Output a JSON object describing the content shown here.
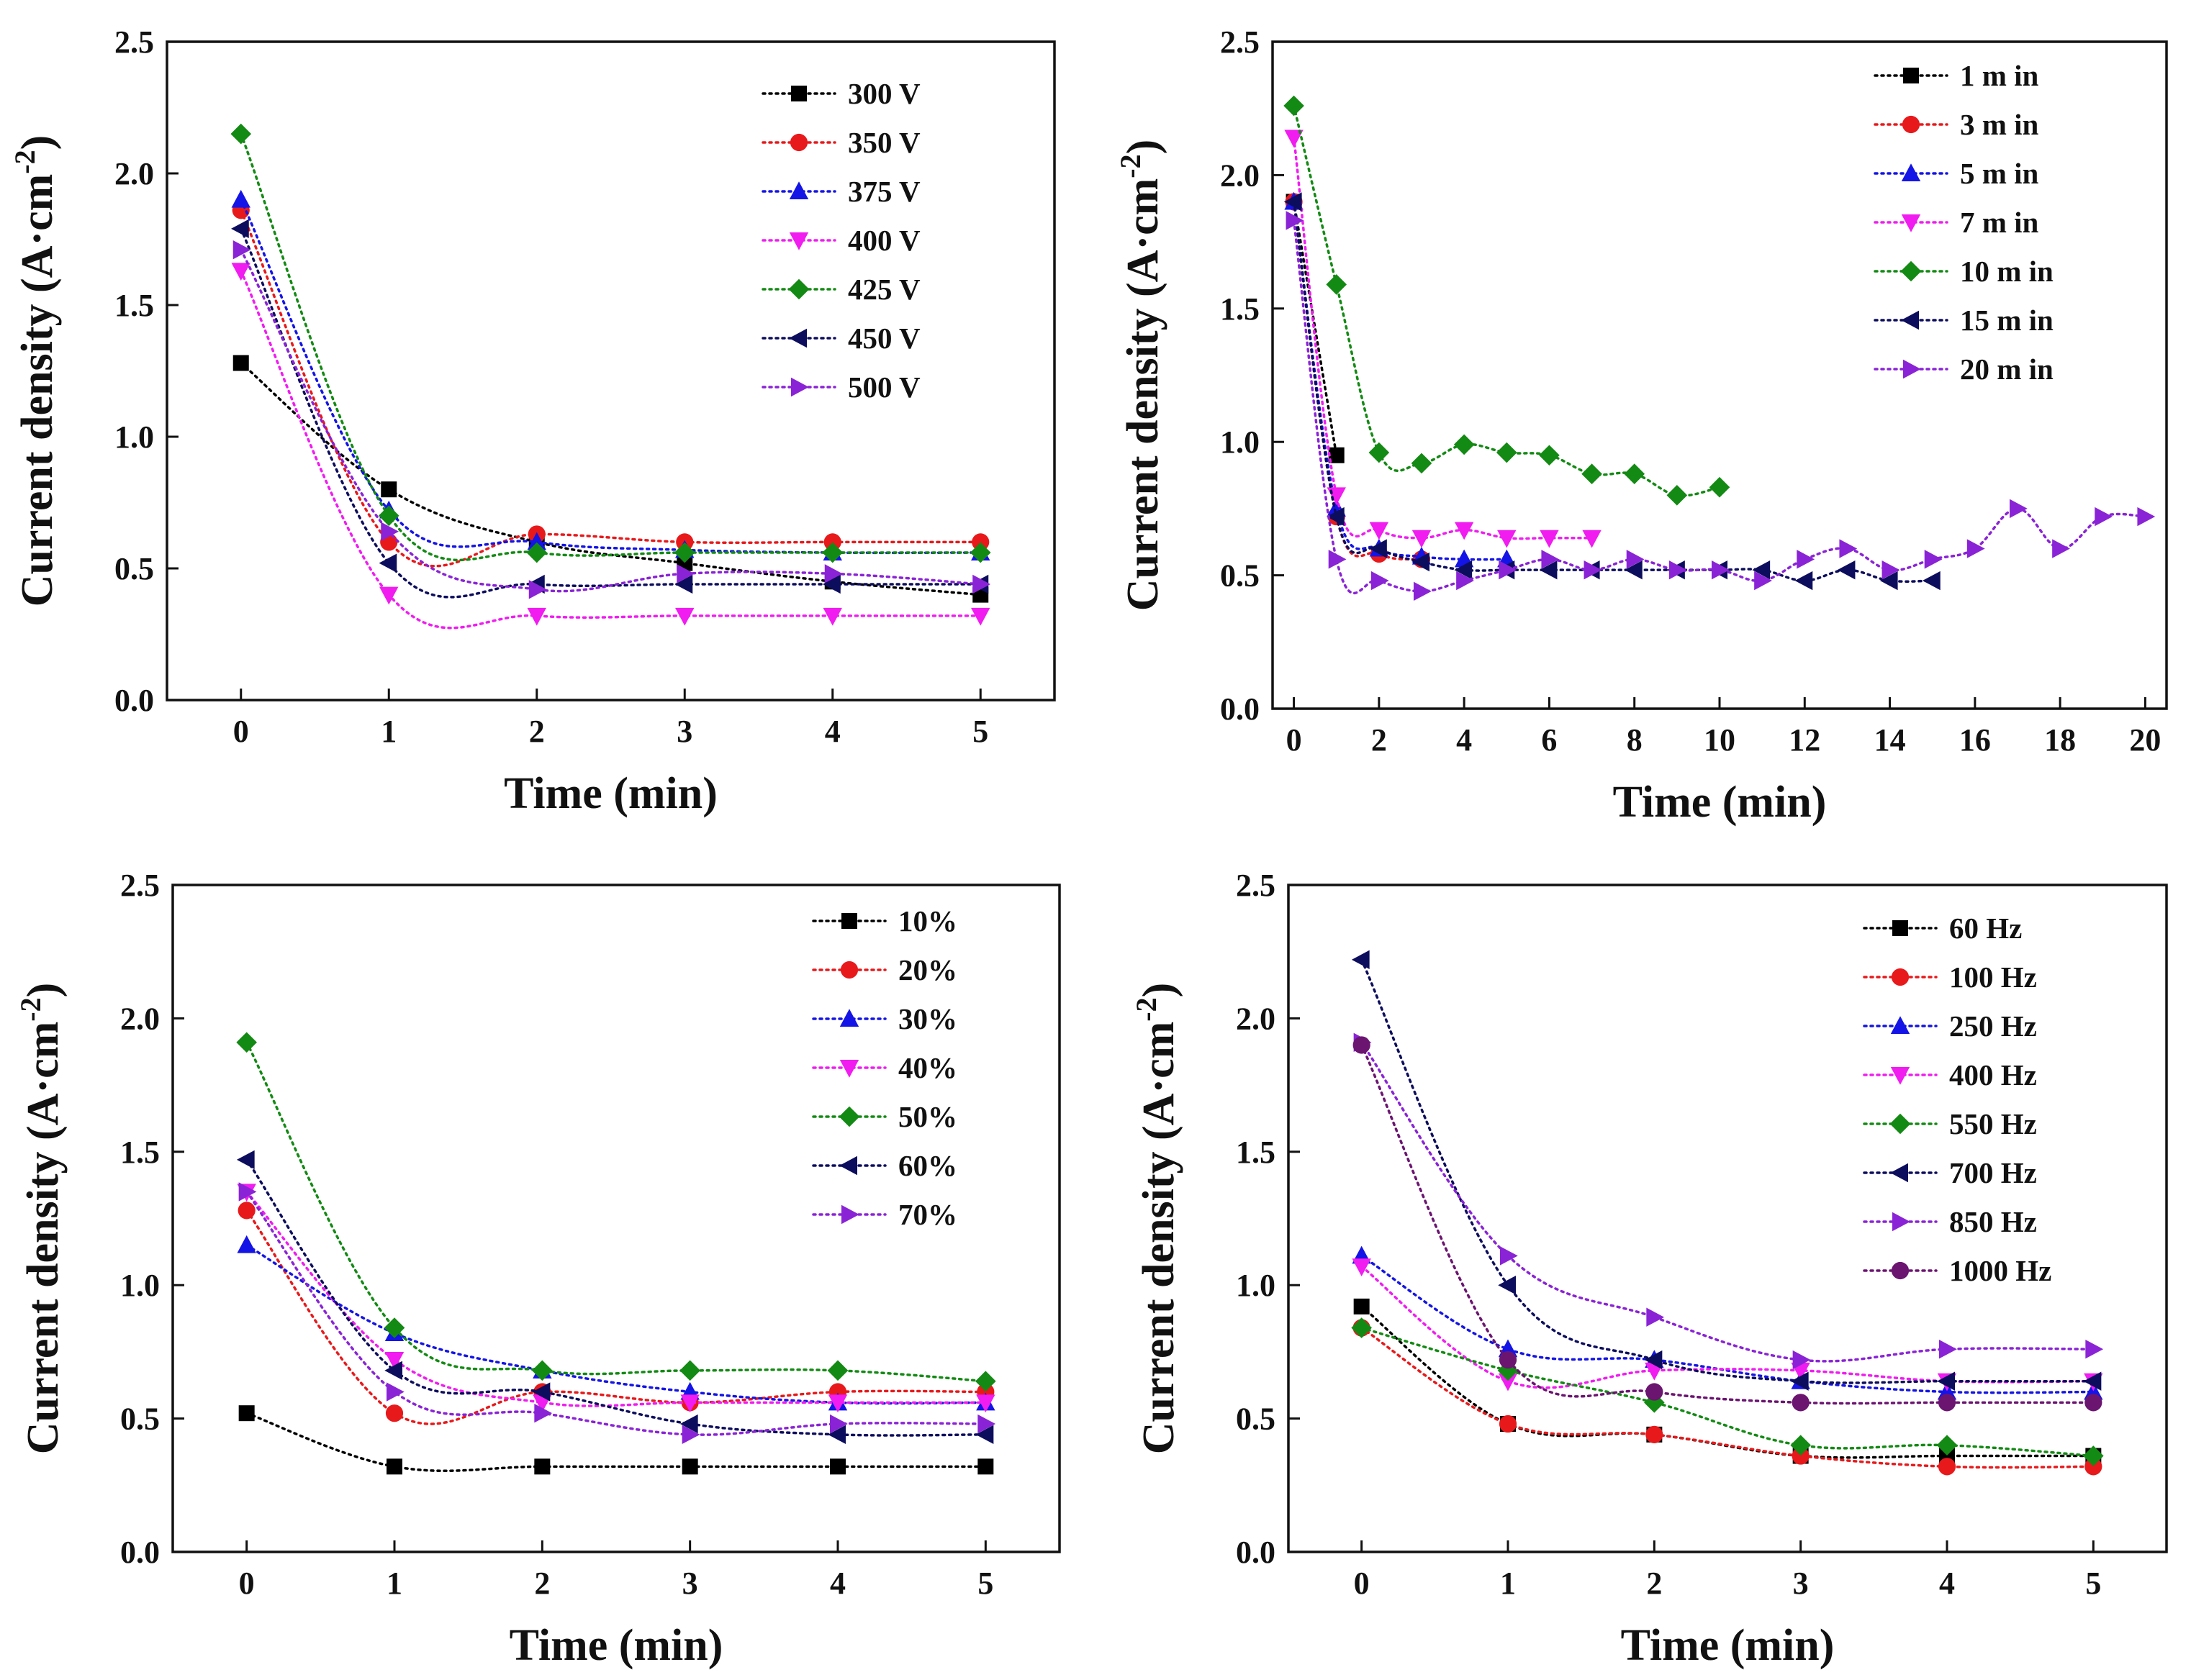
{
  "chart_data": [
    {
      "type": "line",
      "title": "",
      "xlabel": "Time (min)",
      "ylabel_main": "Current density (A·cm",
      "ylabel_sup": "-2",
      "ylabel_close": ")",
      "xlim": [
        -0.5,
        5.5
      ],
      "ylim": [
        0,
        2.5
      ],
      "xticks": [
        0,
        1,
        2,
        3,
        4,
        5
      ],
      "yticks": [
        0.0,
        0.5,
        1.0,
        1.5,
        2.0,
        2.5
      ],
      "ytick_labels": [
        "0.0",
        "0.5",
        "1.0",
        "1.5",
        "2.0",
        "2.5"
      ],
      "legend_position": "top-right",
      "series": [
        {
          "name": "300 V",
          "color": "#000000",
          "marker": "square",
          "x": [
            0,
            1,
            2,
            3,
            4,
            5
          ],
          "y": [
            1.28,
            0.8,
            0.6,
            0.52,
            0.45,
            0.4
          ]
        },
        {
          "name": "350 V",
          "color": "#e8191b",
          "marker": "circle",
          "x": [
            0,
            1,
            2,
            3,
            4,
            5
          ],
          "y": [
            1.86,
            0.6,
            0.63,
            0.6,
            0.6,
            0.6
          ]
        },
        {
          "name": "375 V",
          "color": "#1414e6",
          "marker": "triangle-up",
          "x": [
            0,
            1,
            2,
            3,
            4,
            5
          ],
          "y": [
            1.9,
            0.72,
            0.6,
            0.57,
            0.56,
            0.56
          ]
        },
        {
          "name": "400 V",
          "color": "#f01cf0",
          "marker": "triangle-down",
          "x": [
            0,
            1,
            2,
            3,
            4,
            5
          ],
          "y": [
            1.63,
            0.4,
            0.32,
            0.32,
            0.32,
            0.32
          ]
        },
        {
          "name": "425 V",
          "color": "#138a13",
          "marker": "diamond",
          "x": [
            0,
            1,
            2,
            3,
            4,
            5
          ],
          "y": [
            2.15,
            0.7,
            0.56,
            0.56,
            0.56,
            0.56
          ]
        },
        {
          "name": "450 V",
          "color": "#0d0d5e",
          "marker": "triangle-left",
          "x": [
            0,
            1,
            2,
            3,
            4,
            5
          ],
          "y": [
            1.79,
            0.52,
            0.44,
            0.44,
            0.44,
            0.44
          ]
        },
        {
          "name": "500 V",
          "color": "#8a23d6",
          "marker": "triangle-right",
          "x": [
            0,
            1,
            2,
            3,
            4,
            5
          ],
          "y": [
            1.71,
            0.64,
            0.42,
            0.48,
            0.48,
            0.44
          ]
        }
      ]
    },
    {
      "type": "line",
      "title": "",
      "xlabel": "Time (min)",
      "ylabel_main": "Current density (A·cm",
      "ylabel_sup": "-2",
      "ylabel_close": ")",
      "xlim": [
        -0.5,
        20.5
      ],
      "ylim": [
        0,
        2.5
      ],
      "xticks": [
        0,
        2,
        4,
        6,
        8,
        10,
        12,
        14,
        16,
        18,
        20
      ],
      "yticks": [
        0.0,
        0.5,
        1.0,
        1.5,
        2.0,
        2.5
      ],
      "ytick_labels": [
        "0.0",
        "0.5",
        "1.0",
        "1.5",
        "2.0",
        "2.5"
      ],
      "legend_position": "top-right",
      "series": [
        {
          "name": "1 m in",
          "color": "#000000",
          "marker": "square",
          "x": [
            0,
            1
          ],
          "y": [
            1.9,
            0.95
          ]
        },
        {
          "name": "3 m in",
          "color": "#e8191b",
          "marker": "circle",
          "x": [
            0,
            1,
            2,
            3
          ],
          "y": [
            1.9,
            0.72,
            0.58,
            0.56
          ]
        },
        {
          "name": "5 m in",
          "color": "#1414e6",
          "marker": "triangle-up",
          "x": [
            0,
            1,
            2,
            3,
            4,
            5
          ],
          "y": [
            1.9,
            0.75,
            0.6,
            0.57,
            0.56,
            0.56
          ]
        },
        {
          "name": "7 m in",
          "color": "#f01cf0",
          "marker": "triangle-down",
          "x": [
            0,
            1,
            2,
            3,
            4,
            5,
            6,
            7
          ],
          "y": [
            2.14,
            0.8,
            0.67,
            0.64,
            0.67,
            0.64,
            0.64,
            0.64
          ]
        },
        {
          "name": "10 m in",
          "color": "#138a13",
          "marker": "diamond",
          "x": [
            0,
            1,
            2,
            3,
            4,
            5,
            6,
            7,
            8,
            9,
            10
          ],
          "y": [
            2.26,
            1.59,
            0.96,
            0.92,
            0.99,
            0.96,
            0.95,
            0.88,
            0.88,
            0.8,
            0.83
          ]
        },
        {
          "name": "15 m in",
          "color": "#0d0d5e",
          "marker": "triangle-left",
          "x": [
            0,
            1,
            2,
            3,
            4,
            5,
            6,
            7,
            8,
            9,
            10,
            11,
            12,
            13,
            14,
            15
          ],
          "y": [
            1.9,
            0.72,
            0.6,
            0.55,
            0.52,
            0.52,
            0.52,
            0.52,
            0.52,
            0.52,
            0.52,
            0.52,
            0.48,
            0.52,
            0.48,
            0.48
          ]
        },
        {
          "name": "20 m in",
          "color": "#8a23d6",
          "marker": "triangle-right",
          "x": [
            0,
            1,
            2,
            3,
            4,
            5,
            6,
            7,
            8,
            9,
            10,
            11,
            12,
            13,
            14,
            15,
            16,
            17,
            18,
            19,
            20
          ],
          "y": [
            1.83,
            0.56,
            0.48,
            0.44,
            0.48,
            0.52,
            0.56,
            0.52,
            0.56,
            0.52,
            0.52,
            0.48,
            0.56,
            0.6,
            0.52,
            0.56,
            0.6,
            0.75,
            0.6,
            0.72,
            0.72
          ]
        }
      ]
    },
    {
      "type": "line",
      "title": "",
      "xlabel": "Time (min)",
      "ylabel_main": "Current density (A·cm",
      "ylabel_sup": "-2",
      "ylabel_close": ")",
      "xlim": [
        -0.5,
        5.5
      ],
      "ylim": [
        0,
        2.5
      ],
      "xticks": [
        0,
        1,
        2,
        3,
        4,
        5
      ],
      "yticks": [
        0.0,
        0.5,
        1.0,
        1.5,
        2.0,
        2.5
      ],
      "ytick_labels": [
        "0.0",
        "0.5",
        "1.0",
        "1.5",
        "2.0",
        "2.5"
      ],
      "legend_position": "top-right",
      "series": [
        {
          "name": "10%",
          "color": "#000000",
          "marker": "square",
          "x": [
            0,
            1,
            2,
            3,
            4,
            5
          ],
          "y": [
            0.52,
            0.32,
            0.32,
            0.32,
            0.32,
            0.32
          ]
        },
        {
          "name": "20%",
          "color": "#e8191b",
          "marker": "circle",
          "x": [
            0,
            1,
            2,
            3,
            4,
            5
          ],
          "y": [
            1.28,
            0.52,
            0.6,
            0.56,
            0.6,
            0.6
          ]
        },
        {
          "name": "30%",
          "color": "#1414e6",
          "marker": "triangle-up",
          "x": [
            0,
            1,
            2,
            3,
            4,
            5
          ],
          "y": [
            1.15,
            0.82,
            0.68,
            0.6,
            0.56,
            0.56
          ]
        },
        {
          "name": "40%",
          "color": "#f01cf0",
          "marker": "triangle-down",
          "x": [
            0,
            1,
            2,
            3,
            4,
            5
          ],
          "y": [
            1.35,
            0.72,
            0.56,
            0.56,
            0.56,
            0.56
          ]
        },
        {
          "name": "50%",
          "color": "#138a13",
          "marker": "diamond",
          "x": [
            0,
            1,
            2,
            3,
            4,
            5
          ],
          "y": [
            1.91,
            0.84,
            0.68,
            0.68,
            0.68,
            0.64
          ]
        },
        {
          "name": "60%",
          "color": "#0d0d5e",
          "marker": "triangle-left",
          "x": [
            0,
            1,
            2,
            3,
            4,
            5
          ],
          "y": [
            1.47,
            0.68,
            0.6,
            0.48,
            0.44,
            0.44
          ]
        },
        {
          "name": "70%",
          "color": "#8a23d6",
          "marker": "triangle-right",
          "x": [
            0,
            1,
            2,
            3,
            4,
            5
          ],
          "y": [
            1.35,
            0.6,
            0.52,
            0.44,
            0.48,
            0.48
          ]
        }
      ]
    },
    {
      "type": "line",
      "title": "",
      "xlabel": "Time (min)",
      "ylabel_main": "Current density (A·cm",
      "ylabel_sup": "-2",
      "ylabel_close": ")",
      "xlim": [
        -0.5,
        5.5
      ],
      "ylim": [
        0,
        2.5
      ],
      "xticks": [
        0,
        1,
        2,
        3,
        4,
        5
      ],
      "yticks": [
        0.0,
        0.5,
        1.0,
        1.5,
        2.0,
        2.5
      ],
      "ytick_labels": [
        "0.0",
        "0.5",
        "1.0",
        "1.5",
        "2.0",
        "2.5"
      ],
      "legend_position": "top-right",
      "series": [
        {
          "name": "60 Hz",
          "color": "#000000",
          "marker": "square",
          "x": [
            0,
            1,
            2,
            3,
            4,
            5
          ],
          "y": [
            0.92,
            0.48,
            0.44,
            0.36,
            0.36,
            0.36
          ]
        },
        {
          "name": "100 Hz",
          "color": "#e8191b",
          "marker": "circle",
          "x": [
            0,
            1,
            2,
            3,
            4,
            5
          ],
          "y": [
            0.84,
            0.48,
            0.44,
            0.36,
            0.32,
            0.32
          ]
        },
        {
          "name": "250 Hz",
          "color": "#1414e6",
          "marker": "triangle-up",
          "x": [
            0,
            1,
            2,
            3,
            4,
            5
          ],
          "y": [
            1.11,
            0.76,
            0.72,
            0.64,
            0.6,
            0.6
          ]
        },
        {
          "name": "400 Hz",
          "color": "#f01cf0",
          "marker": "triangle-down",
          "x": [
            0,
            1,
            2,
            3,
            4,
            5
          ],
          "y": [
            1.07,
            0.64,
            0.68,
            0.68,
            0.64,
            0.64
          ]
        },
        {
          "name": "550 Hz",
          "color": "#138a13",
          "marker": "diamond",
          "x": [
            0,
            1,
            2,
            3,
            4,
            5
          ],
          "y": [
            0.84,
            0.68,
            0.56,
            0.4,
            0.4,
            0.36
          ]
        },
        {
          "name": "700 Hz",
          "color": "#0d0d5e",
          "marker": "triangle-left",
          "x": [
            0,
            1,
            2,
            3,
            4,
            5
          ],
          "y": [
            2.22,
            1.0,
            0.72,
            0.64,
            0.64,
            0.64
          ]
        },
        {
          "name": "850 Hz",
          "color": "#8a23d6",
          "marker": "triangle-right",
          "x": [
            0,
            1,
            2,
            3,
            4,
            5
          ],
          "y": [
            1.91,
            1.11,
            0.88,
            0.72,
            0.76,
            0.76
          ]
        },
        {
          "name": "1000 Hz",
          "color": "#6b1470",
          "marker": "circle",
          "x": [
            0,
            1,
            2,
            3,
            4,
            5
          ],
          "y": [
            1.9,
            0.72,
            0.6,
            0.56,
            0.56,
            0.56
          ]
        }
      ]
    }
  ]
}
